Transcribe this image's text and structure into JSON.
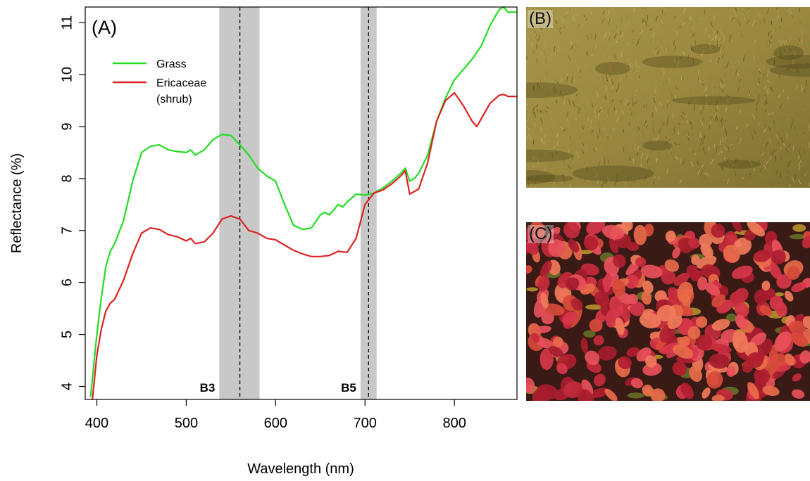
{
  "chart_data": {
    "type": "line",
    "panel_label": "(A)",
    "xlabel": "Wavelength (nm)",
    "ylabel": "Reflectance (%)",
    "xlim": [
      387,
      870
    ],
    "ylim": [
      3.75,
      11.3
    ],
    "x_ticks": [
      400,
      500,
      600,
      700,
      800
    ],
    "y_ticks": [
      4,
      5,
      6,
      7,
      8,
      9,
      10,
      11
    ],
    "grid": false,
    "legend_position": "top-left",
    "bands": [
      {
        "label": "B3",
        "range": [
          537,
          582
        ],
        "center": 560
      },
      {
        "label": "B5",
        "range": [
          695,
          713
        ],
        "center": 704
      }
    ],
    "series": [
      {
        "name": "Grass",
        "color": "#22dd22",
        "x": [
          393,
          400,
          405,
          410,
          415,
          420,
          430,
          440,
          450,
          460,
          470,
          480,
          490,
          500,
          505,
          510,
          520,
          530,
          540,
          550,
          560,
          570,
          580,
          590,
          600,
          610,
          620,
          630,
          640,
          650,
          655,
          660,
          670,
          675,
          680,
          690,
          700,
          710,
          720,
          730,
          740,
          745,
          750,
          755,
          760,
          770,
          780,
          790,
          800,
          810,
          820,
          830,
          840,
          850,
          855,
          860,
          870
        ],
        "y": [
          3.8,
          5.0,
          5.7,
          6.3,
          6.6,
          6.75,
          7.2,
          7.95,
          8.5,
          8.62,
          8.65,
          8.55,
          8.52,
          8.5,
          8.55,
          8.45,
          8.55,
          8.75,
          8.85,
          8.83,
          8.65,
          8.45,
          8.2,
          8.05,
          7.95,
          7.5,
          7.1,
          7.02,
          7.05,
          7.3,
          7.35,
          7.3,
          7.5,
          7.45,
          7.55,
          7.7,
          7.68,
          7.72,
          7.82,
          7.95,
          8.1,
          8.2,
          7.95,
          8.0,
          8.1,
          8.45,
          9.1,
          9.55,
          9.9,
          10.1,
          10.3,
          10.55,
          10.95,
          11.25,
          11.3,
          11.2,
          11.2
        ]
      },
      {
        "name": "Ericaceae (shrub)",
        "color": "#dd2222",
        "x": [
          395,
          400,
          405,
          410,
          415,
          420,
          430,
          440,
          450,
          460,
          470,
          480,
          490,
          500,
          505,
          510,
          520,
          530,
          540,
          550,
          560,
          570,
          580,
          590,
          600,
          610,
          620,
          630,
          640,
          650,
          660,
          670,
          680,
          690,
          700,
          710,
          720,
          730,
          740,
          745,
          750,
          755,
          760,
          770,
          780,
          790,
          800,
          810,
          820,
          825,
          830,
          840,
          850,
          855,
          860,
          870
        ],
        "y": [
          3.75,
          4.6,
          5.1,
          5.45,
          5.6,
          5.68,
          6.05,
          6.55,
          6.95,
          7.05,
          7.02,
          6.92,
          6.88,
          6.8,
          6.85,
          6.75,
          6.78,
          6.95,
          7.22,
          7.28,
          7.22,
          7.0,
          6.95,
          6.85,
          6.82,
          6.72,
          6.62,
          6.55,
          6.5,
          6.5,
          6.52,
          6.6,
          6.58,
          6.85,
          7.5,
          7.72,
          7.78,
          7.9,
          8.05,
          8.15,
          7.7,
          7.75,
          7.8,
          8.3,
          9.1,
          9.5,
          9.65,
          9.4,
          9.1,
          9.0,
          9.15,
          9.45,
          9.6,
          9.62,
          9.58,
          9.58
        ]
      }
    ]
  },
  "photos": [
    {
      "label": "(B)",
      "subject": "grass",
      "base_color": "#9d8a41"
    },
    {
      "label": "(C)",
      "subject": "ericaceae-shrub-leaves",
      "base_color": "#b8283a"
    }
  ]
}
